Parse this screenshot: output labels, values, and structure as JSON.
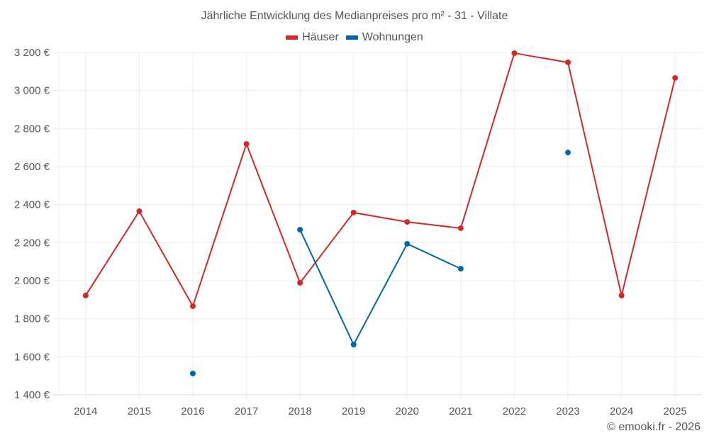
{
  "chart": {
    "title": "Jährliche Entwicklung des Medianpreises pro m² - 31 - Villate",
    "credit": "© emooki.fr - 2026"
  },
  "legend": [
    {
      "label": "Häuser",
      "color": "#d62728"
    },
    {
      "label": "Wohnungen",
      "color": "#0068a0"
    }
  ],
  "chart_data": {
    "type": "line",
    "title": "Jährliche Entwicklung des Medianpreises pro m² - 31 - Villate",
    "xlabel": "",
    "ylabel": "",
    "x": [
      "2014",
      "2015",
      "2016",
      "2017",
      "2018",
      "2019",
      "2020",
      "2021",
      "2022",
      "2023",
      "2024",
      "2025"
    ],
    "y_ticks": [
      "1 400 €",
      "1 600 €",
      "1 800 €",
      "2 000 €",
      "2 200 €",
      "2 400 €",
      "2 600 €",
      "2 800 €",
      "3 000 €",
      "3 200 €"
    ],
    "ylim": [
      1400,
      3200
    ],
    "grid": true,
    "legend_position": "top",
    "series": [
      {
        "name": "Häuser",
        "color": "#d62728",
        "values": [
          1922,
          2365,
          1866,
          2719,
          1989,
          2358,
          2309,
          2276,
          3196,
          3148,
          1922,
          3066
        ]
      },
      {
        "name": "Wohnungen",
        "color": "#0068a0",
        "values": [
          null,
          null,
          1512,
          null,
          2268,
          1664,
          2194,
          2063,
          null,
          2674,
          null,
          null
        ]
      }
    ],
    "annotations": [
      "© emooki.fr - 2026"
    ]
  }
}
